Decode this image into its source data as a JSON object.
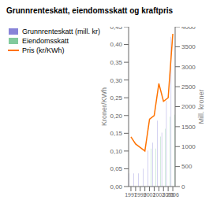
{
  "chart_data": {
    "type": "bar",
    "title": "Grunnrenteskatt, eiendomsskatt og kraftpris",
    "ylabel": "Kroner/KWh",
    "y2label": "Mill. kroner",
    "categories": [
      "1997",
      null,
      "1999",
      null,
      "2001",
      null,
      "2003",
      null,
      "2005",
      "2006"
    ],
    "series": [
      {
        "name": "Grunnrenteskatt (mill. kr)",
        "type": "bar",
        "axis": "y2",
        "color": "#8884d8",
        "values": [
          330,
          330,
          330,
          450,
          900,
          1100,
          1650,
          1350,
          2150,
          3750
        ]
      },
      {
        "name": "Eiendomsskatt",
        "type": "bar",
        "axis": "y2",
        "color": "#82ca9d",
        "values": [
          0,
          0,
          0,
          0,
          950,
          950,
          1250,
          1450,
          1750,
          1800
        ]
      },
      {
        "name": "Pris (kr/KWh)",
        "type": "line",
        "axis": "y",
        "color": "#ff7300",
        "values": [
          0.14,
          0.12,
          0.11,
          0.1,
          0.19,
          0.2,
          0.29,
          0.24,
          0.25,
          0.43
        ]
      }
    ],
    "ylim": [
      0,
      0.45
    ],
    "yticks": [
      {
        "value": 0,
        "label": "0,00"
      },
      {
        "value": 0.05,
        "label": "0,05"
      },
      {
        "value": 0.1,
        "label": "0,10"
      },
      {
        "value": 0.15,
        "label": "0,15"
      },
      {
        "value": 0.2,
        "label": "0,20"
      },
      {
        "value": 0.25,
        "label": "0,25"
      },
      {
        "value": 0.3,
        "label": "0,30"
      },
      {
        "value": 0.35,
        "label": "0,35"
      },
      {
        "value": 0.4,
        "label": "0,40"
      },
      {
        "value": 0.45,
        "label": "0,45"
      }
    ],
    "y2lim": [
      0,
      4000
    ],
    "y2ticks": [
      0,
      500,
      1000,
      1500,
      2000,
      2500,
      3000,
      3500,
      4000
    ],
    "legend": "upper left",
    "grid": false
  }
}
